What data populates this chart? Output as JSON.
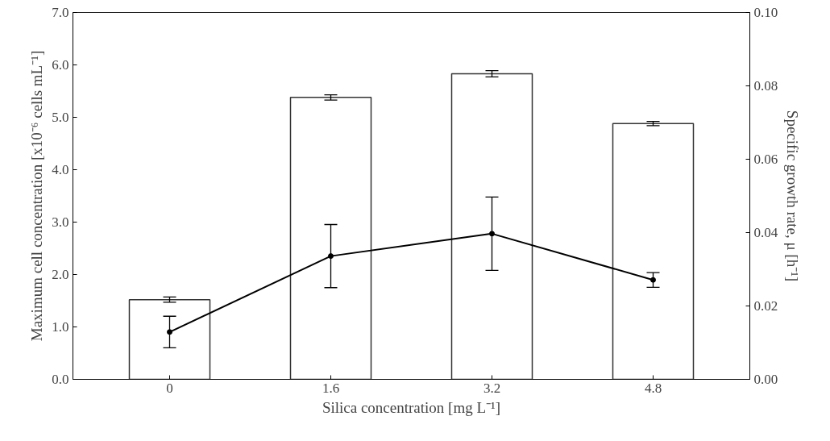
{
  "chart_data": {
    "type": "bar",
    "xlabel": "Silica concentration [mg L⁻¹]",
    "ylabel": "Maximum cell concentration [x10⁻⁶ cells mL⁻¹]",
    "y2label": "Specific growth rate, μ [h⁻¹]",
    "categories": [
      "0",
      "1.6",
      "3.2",
      "4.8"
    ],
    "series": [
      {
        "color": "#ffffff",
        "values": [
          1.52,
          5.38,
          5.83,
          4.88
        ],
        "errors": [
          0.05,
          0.05,
          0.06,
          0.04
        ]
      },
      {
        "type": "line",
        "axis": "y2",
        "color": "#000000",
        "values": [
          0.0129,
          0.0336,
          0.0397,
          0.0271
        ],
        "errors": [
          0.0043,
          0.0086,
          0.01,
          0.002
        ]
      }
    ],
    "ylim": [
      0,
      7
    ],
    "yticks": [
      {
        "value": 0,
        "label": "0.0"
      },
      {
        "value": 1,
        "label": "1.0"
      },
      {
        "value": 2,
        "label": "2.0"
      },
      {
        "value": 3,
        "label": "3.0"
      },
      {
        "value": 4,
        "label": "4.0"
      },
      {
        "value": 5,
        "label": "5.0"
      },
      {
        "value": 6,
        "label": "6.0"
      },
      {
        "value": 7,
        "label": "7.0"
      }
    ],
    "y2lim": [
      0,
      0.1
    ],
    "y2ticks": [
      {
        "value": 0,
        "label": "0.00"
      },
      {
        "value": 0.02,
        "label": "0.02"
      },
      {
        "value": 0.04,
        "label": "0.04"
      },
      {
        "value": 0.06,
        "label": "0.06"
      },
      {
        "value": 0.08,
        "label": "0.08"
      },
      {
        "value": 0.1,
        "label": "0.10"
      }
    ],
    "grid": false,
    "marker": "circle",
    "line_style": "solid"
  }
}
